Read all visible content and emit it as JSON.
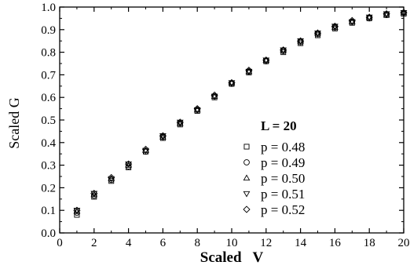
{
  "chart_data": {
    "type": "scatter",
    "xlabel": "Scaled   V",
    "ylabel": "Scaled G",
    "xlim": [
      0,
      20
    ],
    "ylim": [
      0.0,
      1.0
    ],
    "x_ticks": [
      "0",
      "2",
      "4",
      "6",
      "8",
      "10",
      "12",
      "14",
      "16",
      "18",
      "20"
    ],
    "y_ticks": [
      "0.0",
      "0.1",
      "0.2",
      "0.3",
      "0.4",
      "0.5",
      "0.6",
      "0.7",
      "0.8",
      "0.9",
      "1.0"
    ],
    "grid": false,
    "legend_position": "bottom-right",
    "legend_title": "L = 20",
    "series": [
      {
        "name": "p = 0.48",
        "marker": "square",
        "x": [
          1,
          2,
          3,
          4,
          5,
          6,
          7,
          8,
          9,
          10,
          11,
          12,
          13,
          14,
          15,
          16,
          17,
          18,
          19,
          20
        ],
        "y": [
          0.08,
          0.16,
          0.23,
          0.29,
          0.36,
          0.42,
          0.48,
          0.54,
          0.6,
          0.66,
          0.71,
          0.76,
          0.8,
          0.84,
          0.875,
          0.905,
          0.93,
          0.95,
          0.965,
          0.97
        ]
      },
      {
        "name": "p = 0.49",
        "marker": "circle",
        "x": [
          1,
          2,
          3,
          4,
          5,
          6,
          7,
          8,
          9,
          10,
          11,
          12,
          13,
          14,
          15,
          16,
          17,
          18,
          19,
          20
        ],
        "y": [
          0.09,
          0.165,
          0.235,
          0.295,
          0.36,
          0.425,
          0.485,
          0.545,
          0.605,
          0.66,
          0.715,
          0.76,
          0.805,
          0.845,
          0.88,
          0.91,
          0.935,
          0.95,
          0.965,
          0.975
        ]
      },
      {
        "name": "p = 0.50",
        "marker": "triangle-up",
        "x": [
          1,
          2,
          3,
          4,
          5,
          6,
          7,
          8,
          9,
          10,
          11,
          12,
          13,
          14,
          15,
          16,
          17,
          18,
          19,
          20
        ],
        "y": [
          0.095,
          0.17,
          0.24,
          0.3,
          0.365,
          0.425,
          0.485,
          0.545,
          0.605,
          0.665,
          0.715,
          0.765,
          0.81,
          0.85,
          0.885,
          0.91,
          0.935,
          0.955,
          0.965,
          0.975
        ]
      },
      {
        "name": "p = 0.51",
        "marker": "triangle-down",
        "x": [
          1,
          2,
          3,
          4,
          5,
          6,
          7,
          8,
          9,
          10,
          11,
          12,
          13,
          14,
          15,
          16,
          17,
          18,
          19,
          20
        ],
        "y": [
          0.1,
          0.175,
          0.24,
          0.305,
          0.365,
          0.43,
          0.49,
          0.545,
          0.605,
          0.665,
          0.715,
          0.765,
          0.81,
          0.85,
          0.885,
          0.915,
          0.935,
          0.955,
          0.97,
          0.975
        ]
      },
      {
        "name": "p = 0.52",
        "marker": "diamond",
        "x": [
          1,
          2,
          3,
          4,
          5,
          6,
          7,
          8,
          9,
          10,
          11,
          12,
          13,
          14,
          15,
          16,
          17,
          18,
          19,
          20
        ],
        "y": [
          0.1,
          0.175,
          0.245,
          0.305,
          0.37,
          0.43,
          0.49,
          0.55,
          0.61,
          0.665,
          0.72,
          0.765,
          0.81,
          0.85,
          0.885,
          0.915,
          0.94,
          0.955,
          0.97,
          0.975
        ]
      }
    ]
  }
}
